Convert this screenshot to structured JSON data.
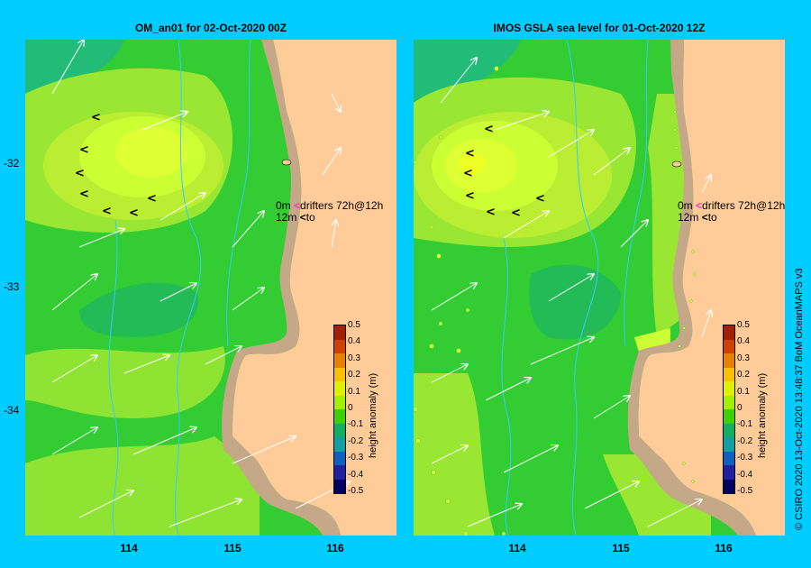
{
  "panels": [
    {
      "title": "OM_an01  for 02-Oct-2020 00Z"
    },
    {
      "title": "IMOS  GSLA sea level  for 01-Oct-2020 12Z"
    }
  ],
  "lat_ticks": [
    "-32",
    "-33",
    "-34"
  ],
  "lon_ticks": [
    "114",
    "115",
    "116"
  ],
  "legend": {
    "line1_left": "0m",
    "line1_right": "drifters 72h@12h",
    "line2_left": "12m",
    "line2_right": "to"
  },
  "colorbar": {
    "title": "height anomaly (m)",
    "ticks": [
      "0.5",
      "0.4",
      "0.3",
      "0.2",
      "0.1",
      "0",
      "-0.1",
      "-0.2",
      "-0.3",
      "-0.4",
      "-0.5"
    ],
    "colors": [
      "#a02000",
      "#d04000",
      "#e88000",
      "#f8c000",
      "#e0f000",
      "#a0f000",
      "#40d000",
      "#10b060",
      "#10a0a0",
      "#1060c0",
      "#2020a0",
      "#000060"
    ]
  },
  "copyright": "© CSIRO 2020   13-Oct-2020 13:48:37 BoM OceanMAPS v3",
  "colors": {
    "background": "#00ccff",
    "land": "#ffcc99",
    "shelf": "#c4a888",
    "green": "#33cc33",
    "yellow_green": "#99e633",
    "yellow": "#ccff33"
  }
}
